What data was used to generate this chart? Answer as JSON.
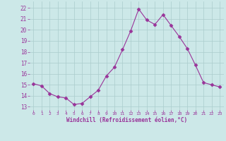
{
  "x": [
    0,
    1,
    2,
    3,
    4,
    5,
    6,
    7,
    8,
    9,
    10,
    11,
    12,
    13,
    14,
    15,
    16,
    17,
    18,
    19,
    20,
    21,
    22,
    23
  ],
  "y": [
    15.1,
    14.9,
    14.2,
    13.9,
    13.8,
    13.2,
    13.3,
    13.9,
    14.5,
    15.8,
    16.6,
    18.2,
    19.9,
    21.9,
    20.9,
    20.5,
    21.4,
    20.4,
    19.4,
    18.3,
    16.8,
    15.2,
    15.0,
    14.8
  ],
  "line_color": "#993399",
  "marker": "D",
  "bg_color": "#cce8e8",
  "grid_color": "#aacccc",
  "xlabel": "Windchill (Refroidissement éolien,°C)",
  "ylabel_ticks": [
    13,
    14,
    15,
    16,
    17,
    18,
    19,
    20,
    21,
    22
  ],
  "xlim": [
    -0.5,
    23.5
  ],
  "ylim": [
    12.7,
    22.6
  ],
  "xlabel_color": "#993399",
  "tick_color": "#993399",
  "marker_size": 2.5
}
